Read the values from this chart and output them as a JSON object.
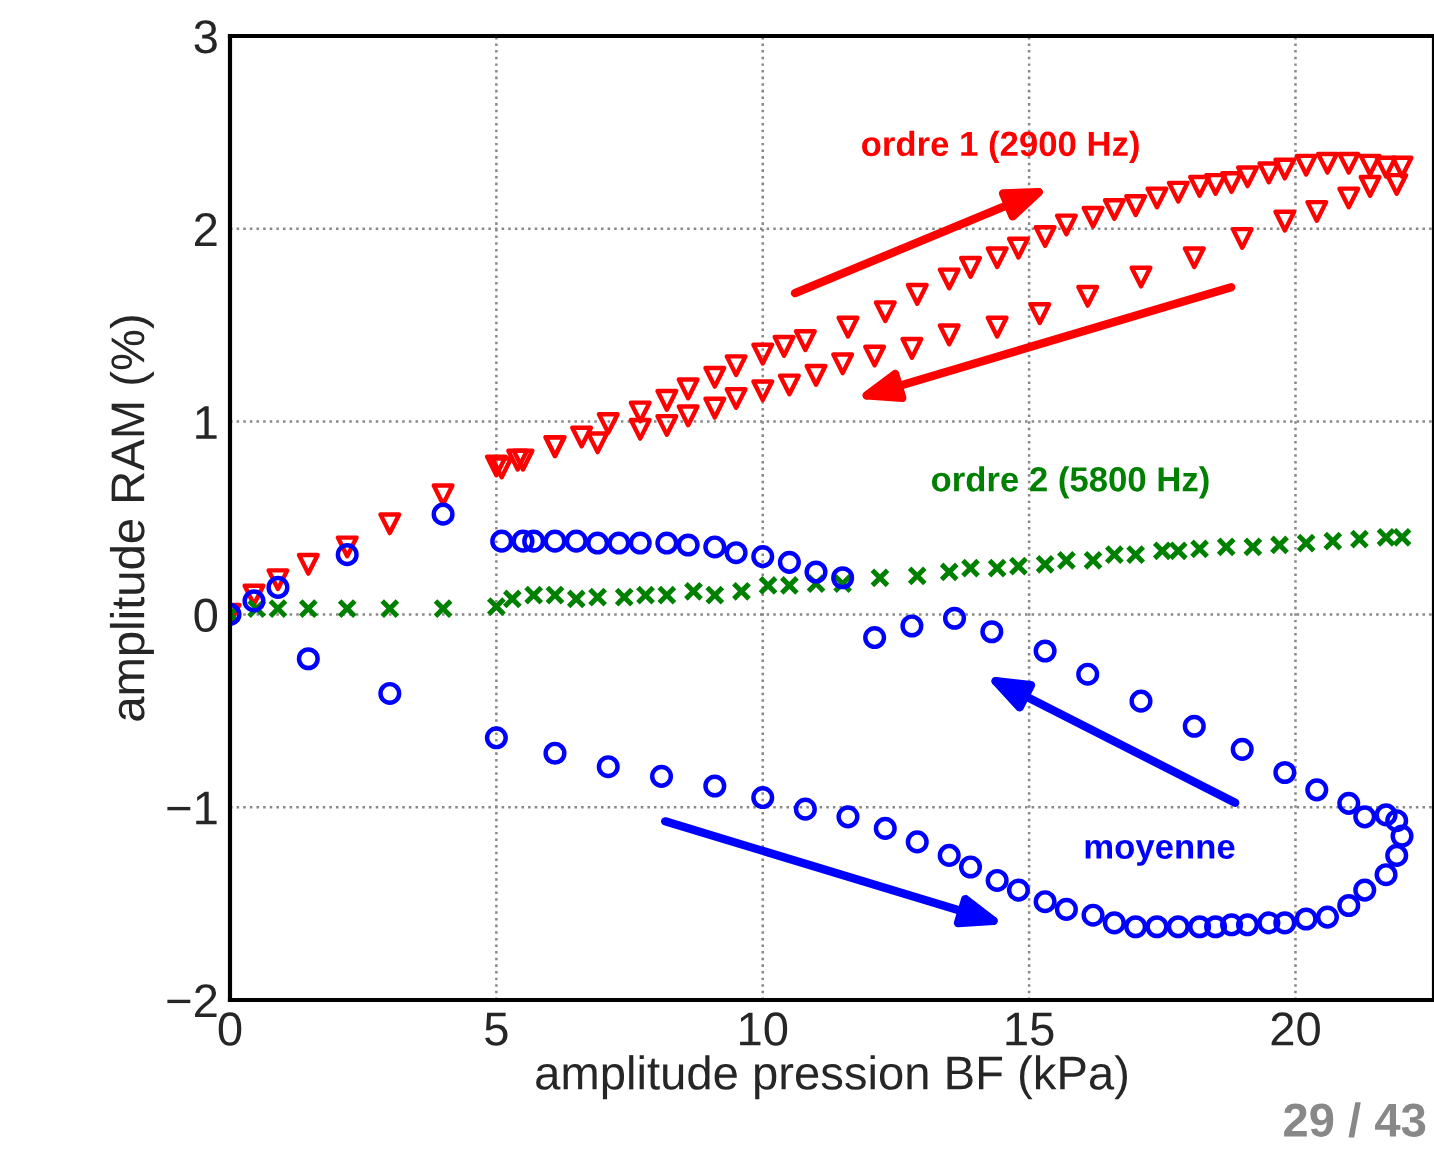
{
  "chart_data": {
    "type": "scatter",
    "xlabel": "amplitude pression BF (kPa)",
    "ylabel": "amplitude RAM (%)",
    "xlim": [
      0,
      22.6
    ],
    "ylim": [
      -2,
      3
    ],
    "xticks": [
      0,
      5,
      10,
      15,
      20
    ],
    "yticks": [
      -2,
      -1,
      0,
      1,
      2,
      3
    ],
    "grid": true,
    "legend": false,
    "annotations": [
      "29 / 43"
    ],
    "series": [
      {
        "name": "ordre 1 (2900 Hz)",
        "color": "#ff0000",
        "marker": "triangle",
        "x": [
          0,
          0.45,
          0.9,
          1.47,
          2.2,
          3.0,
          4.0,
          5.0,
          5.5,
          6.1,
          6.6,
          7.1,
          7.7,
          8.2,
          8.6,
          9.1,
          9.5,
          10.0,
          10.4,
          10.8,
          11.6,
          12.3,
          12.9,
          13.5,
          13.9,
          14.4,
          14.8,
          15.3,
          15.7,
          16.2,
          16.6,
          17.0,
          17.4,
          17.8,
          18.2,
          18.5,
          18.8,
          19.1,
          19.5,
          19.8,
          20.2,
          20.6,
          21.0,
          21.4,
          21.7,
          22.0,
          21.9,
          21.4,
          21.0,
          20.4,
          19.8,
          19.0,
          18.1,
          17.1,
          16.1,
          15.2,
          14.4,
          13.5,
          12.8,
          12.1,
          11.5,
          11.0,
          10.5,
          10.0,
          9.5,
          9.1,
          8.6,
          8.2,
          7.7,
          6.9,
          6.1,
          5.4,
          5.1
        ],
        "values": [
          0,
          0.1,
          0.18,
          0.26,
          0.35,
          0.47,
          0.62,
          0.77,
          0.8,
          0.87,
          0.92,
          0.99,
          1.05,
          1.11,
          1.17,
          1.23,
          1.29,
          1.35,
          1.39,
          1.42,
          1.49,
          1.57,
          1.66,
          1.74,
          1.8,
          1.85,
          1.9,
          1.96,
          2.02,
          2.06,
          2.1,
          2.12,
          2.16,
          2.19,
          2.22,
          2.23,
          2.24,
          2.27,
          2.29,
          2.31,
          2.33,
          2.34,
          2.34,
          2.33,
          2.32,
          2.32,
          2.23,
          2.22,
          2.16,
          2.09,
          2.04,
          1.95,
          1.85,
          1.75,
          1.65,
          1.56,
          1.49,
          1.45,
          1.38,
          1.34,
          1.3,
          1.24,
          1.19,
          1.16,
          1.12,
          1.07,
          1.03,
          0.98,
          0.96,
          0.89,
          0.87,
          0.8,
          0.76
        ]
      },
      {
        "name": "ordre 2 (5800 Hz)",
        "color": "#008000",
        "marker": "cross",
        "x": [
          0,
          0.2,
          0.5,
          0.9,
          1.47,
          2.2,
          3.0,
          4.0,
          5.0,
          5.3,
          5.7,
          6.1,
          6.5,
          6.9,
          7.4,
          7.8,
          8.2,
          8.7,
          9.1,
          9.6,
          10.1,
          10.5,
          11.0,
          11.5,
          12.2,
          12.9,
          13.5,
          13.9,
          14.4,
          14.8,
          15.3,
          15.7,
          16.2,
          16.6,
          17.0,
          17.5,
          17.8,
          18.2,
          18.7,
          19.2,
          19.7,
          20.2,
          20.7,
          21.2,
          21.7,
          22.0
        ],
        "values": [
          0,
          null,
          0.03,
          0.03,
          0.03,
          0.03,
          0.03,
          0.03,
          0.04,
          0.08,
          0.1,
          0.1,
          0.08,
          0.09,
          0.09,
          0.1,
          0.1,
          0.12,
          0.1,
          0.12,
          0.15,
          0.15,
          0.16,
          0.16,
          0.19,
          0.2,
          0.22,
          0.24,
          0.24,
          0.25,
          0.26,
          0.28,
          0.28,
          0.31,
          0.31,
          0.33,
          0.33,
          0.34,
          0.35,
          0.35,
          0.36,
          0.37,
          0.38,
          0.39,
          0.4,
          0.4
        ]
      },
      {
        "name": "moyenne",
        "color": "#0000ff",
        "marker": "circle",
        "x": [
          0,
          0.45,
          0.9,
          1.47,
          2.2,
          3.0,
          4.0,
          5.0,
          6.1,
          7.1,
          8.1,
          9.1,
          10.0,
          10.8,
          11.6,
          12.3,
          12.9,
          13.5,
          13.9,
          14.4,
          14.8,
          15.3,
          15.7,
          16.2,
          16.6,
          17.0,
          17.4,
          17.8,
          18.2,
          18.5,
          18.8,
          19.1,
          19.5,
          19.8,
          20.2,
          20.6,
          21.0,
          21.3,
          21.7,
          21.9,
          22.0,
          21.9,
          21.7,
          21.3,
          21.0,
          20.4,
          19.8,
          19.0,
          18.1,
          17.1,
          16.1,
          15.3,
          14.3,
          13.6,
          12.8,
          12.1,
          11.5,
          11.0,
          10.5,
          10.0,
          9.5,
          9.1,
          8.6,
          8.2,
          7.7,
          7.3,
          6.9,
          6.5,
          6.1,
          5.7,
          5.5,
          5.1
        ],
        "values": [
          0,
          0.07,
          0.14,
          -0.23,
          0.31,
          -0.41,
          0.52,
          -0.64,
          -0.72,
          -0.79,
          -0.84,
          -0.89,
          -0.95,
          -1.01,
          -1.05,
          -1.11,
          -1.18,
          -1.25,
          -1.31,
          -1.38,
          -1.43,
          -1.49,
          -1.53,
          -1.56,
          -1.6,
          -1.62,
          -1.62,
          -1.62,
          -1.62,
          -1.62,
          -1.61,
          -1.61,
          -1.6,
          -1.6,
          -1.58,
          -1.57,
          -1.51,
          -1.43,
          -1.35,
          -1.25,
          -1.15,
          -1.07,
          -1.04,
          -1.05,
          -0.98,
          -0.91,
          -0.82,
          -0.7,
          -0.58,
          -0.45,
          -0.31,
          -0.19,
          -0.09,
          -0.02,
          -0.06,
          -0.12,
          0.19,
          0.22,
          0.27,
          0.3,
          0.32,
          0.35,
          0.36,
          0.37,
          0.37,
          0.37,
          0.37,
          0.38,
          0.38,
          0.38,
          0.38,
          0.38
        ]
      }
    ]
  }
}
